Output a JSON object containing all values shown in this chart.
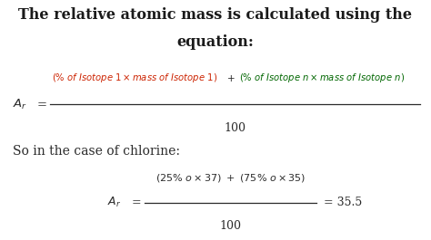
{
  "background_color": "#ffffff",
  "title_line1": "The relative atomic mass is calculated using the",
  "title_line2": "equation:",
  "title_fontsize": 11.5,
  "title_color": "#1a1a1a",
  "formula_color_red": "#cc2200",
  "formula_color_green": "#006600",
  "formula_color_black": "#2a2a2a",
  "text_color": "#2a2a2a",
  "frac1_red": "(% of Isotope 1 × mass of Isotope 1)",
  "frac1_plus": " + ",
  "frac1_green": "(% of Isotope n × mass of Isotope n)",
  "frac1_denom": "100",
  "chlorine_num": "(25% o × 37) + (75% o × 35)",
  "chlorine_denom": "100",
  "chlorine_result": "= 35.5",
  "so_text": "So in the case of chlorine:"
}
